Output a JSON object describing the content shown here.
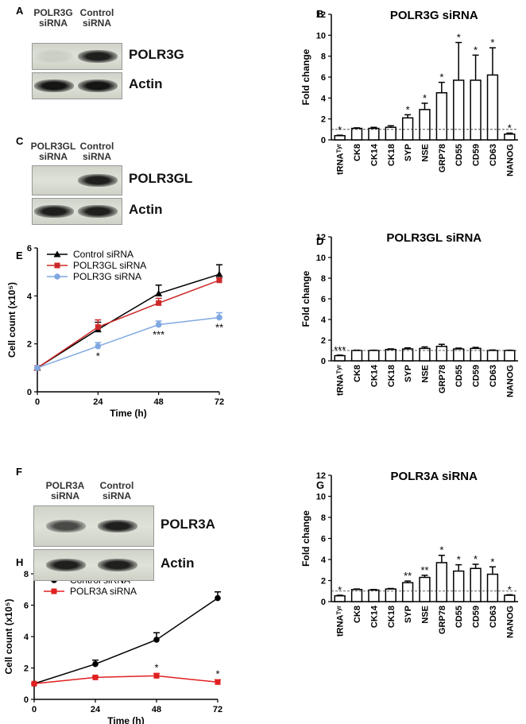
{
  "blots": [
    {
      "panel": "A",
      "lanes": [
        "POLR3G siRNA",
        "Control siRNA"
      ],
      "rows": [
        "POLR3G",
        "Actin"
      ]
    },
    {
      "panel": "C",
      "lanes": [
        "POLR3GL siRNA",
        "Control siRNA"
      ],
      "rows": [
        "POLR3GL",
        "Actin"
      ]
    },
    {
      "panel": "F",
      "lanes": [
        "POLR3A siRNA",
        "Control siRNA"
      ],
      "rows": [
        "POLR3A",
        "Actin"
      ]
    }
  ],
  "chart_data": [
    {
      "type": "bar",
      "panel": "B",
      "title": "POLR3G siRNA",
      "y_label": "Fold change",
      "categories": [
        "tRNAᵀʸʳ",
        "CK8",
        "CK14",
        "CK18",
        "SYP",
        "NSE",
        "GRP78",
        "CD55",
        "CD59",
        "CD63",
        "NANOG"
      ],
      "values": [
        0.4,
        1.1,
        1.1,
        1.2,
        2.1,
        2.9,
        4.5,
        5.7,
        5.7,
        6.2,
        0.55
      ],
      "errors": [
        0.05,
        0.05,
        0.1,
        0.15,
        0.3,
        0.6,
        1.0,
        3.6,
        2.4,
        2.6,
        0.1
      ],
      "significance": [
        "*",
        null,
        null,
        null,
        "*",
        "*",
        "*",
        "*",
        "*",
        "*",
        "*"
      ],
      "reference_line": 1,
      "color": "#ffffff",
      "ylim": [
        0,
        12
      ],
      "yticks": [
        0,
        2,
        4,
        6,
        8,
        10,
        12
      ]
    },
    {
      "type": "bar",
      "panel": "D",
      "title": "POLR3GL siRNA",
      "y_label": "Fold change",
      "categories": [
        "tRNAᵀʸʳ",
        "CK8",
        "CK14",
        "CK18",
        "SYP",
        "NSE",
        "GRP78",
        "CD55",
        "CD59",
        "CD63",
        "NANOG"
      ],
      "values": [
        0.5,
        1.0,
        1.0,
        1.1,
        1.15,
        1.2,
        1.4,
        1.15,
        1.2,
        1.0,
        1.0
      ],
      "errors": [
        0.05,
        0.03,
        0.03,
        0.05,
        0.1,
        0.15,
        0.2,
        0.08,
        0.1,
        0.05,
        0.03
      ],
      "significance": [
        "***",
        null,
        null,
        null,
        null,
        null,
        null,
        null,
        null,
        null,
        null
      ],
      "reference_line": 1,
      "color": "#ffffff",
      "ylim": [
        0,
        12
      ],
      "yticks": [
        0,
        2,
        4,
        6,
        8,
        10,
        12
      ]
    },
    {
      "type": "line",
      "panel": "E",
      "x_label": "Time (h)",
      "y_label": "Cell count (x10⁵)",
      "x": [
        0,
        24,
        48,
        72
      ],
      "xlim": [
        0,
        72
      ],
      "xticks": [
        0,
        24,
        48,
        72
      ],
      "ylim": [
        0,
        6
      ],
      "yticks": [
        0,
        2,
        4,
        6
      ],
      "legend": "upper left",
      "series": [
        {
          "name": "Control siRNA",
          "color": "#000000",
          "marker": "triangle",
          "values": [
            1,
            2.6,
            4.1,
            4.9
          ],
          "errors": [
            0,
            0.3,
            0.35,
            0.4
          ]
        },
        {
          "name": "POLR3GL siRNA",
          "color": "#cc2a2a",
          "marker": "square",
          "values": [
            1,
            2.7,
            3.7,
            4.65
          ],
          "errors": [
            0,
            0.3,
            0.2,
            0.1
          ]
        },
        {
          "name": "POLR3G siRNA",
          "color": "#7fa8e0",
          "marker": "circle",
          "values": [
            1,
            1.9,
            2.8,
            3.1
          ],
          "errors": [
            0,
            0.15,
            0.15,
            0.2
          ],
          "significance": [
            null,
            "*",
            "***",
            "**"
          ]
        }
      ]
    },
    {
      "type": "bar",
      "panel": "G",
      "title": "POLR3A siRNA",
      "y_label": "Fold change",
      "categories": [
        "tRNAᵀʸʳ",
        "CK8",
        "CK14",
        "CK18",
        "SYP",
        "NSE",
        "GRP78",
        "CD55",
        "CD59",
        "CD63",
        "NANOG"
      ],
      "values": [
        0.55,
        1.15,
        1.1,
        1.2,
        1.8,
        2.3,
        3.7,
        2.9,
        3.15,
        2.6,
        0.6
      ],
      "errors": [
        0.05,
        0.05,
        0.05,
        0.05,
        0.15,
        0.2,
        0.7,
        0.6,
        0.4,
        0.7,
        0.05
      ],
      "significance": [
        "*",
        null,
        null,
        null,
        "**",
        "**",
        "*",
        "*",
        "*",
        "*",
        "*"
      ],
      "reference_line": 1,
      "color": "#ffffff",
      "ylim": [
        0,
        12
      ],
      "yticks": [
        0,
        2,
        4,
        6,
        8,
        10,
        12
      ]
    },
    {
      "type": "line",
      "panel": "H",
      "x_label": "Time (h)",
      "y_label": "Cell count (x10⁵)",
      "x": [
        0,
        24,
        48,
        72
      ],
      "xlim": [
        0,
        72
      ],
      "xticks": [
        0,
        24,
        48,
        72
      ],
      "ylim": [
        0,
        8
      ],
      "yticks": [
        0,
        2,
        4,
        6,
        8
      ],
      "legend": "upper left",
      "series": [
        {
          "name": "Control siRNA",
          "color": "#000000",
          "marker": "circle",
          "values": [
            1,
            2.25,
            3.8,
            6.45
          ],
          "errors": [
            0,
            0.25,
            0.45,
            0.4
          ]
        },
        {
          "name": "POLR3A siRNA",
          "color": "#e02020",
          "marker": "square",
          "values": [
            1,
            1.4,
            1.5,
            1.1
          ],
          "errors": [
            0,
            0.05,
            0.15,
            0.15
          ],
          "significance": [
            null,
            null,
            "*",
            "*"
          ]
        }
      ]
    }
  ]
}
